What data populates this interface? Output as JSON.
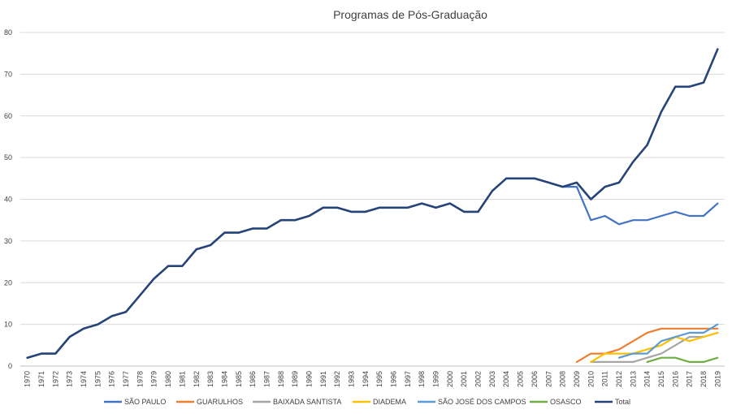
{
  "chart_data": {
    "type": "line",
    "title": "Programas de Pós-Graduação",
    "xlabel": "",
    "ylabel": "",
    "ylim": [
      0,
      80
    ],
    "yticks": [
      "0",
      "10",
      "20",
      "30",
      "40",
      "50",
      "60",
      "70",
      "80"
    ],
    "grid": "horizontal",
    "legend_position": "bottom",
    "x": [
      "1970",
      "1971",
      "1972",
      "1973",
      "1974",
      "1975",
      "1976",
      "1977",
      "1978",
      "1979",
      "1980",
      "1981",
      "1982",
      "1983",
      "1984",
      "1985",
      "1986",
      "1987",
      "1988",
      "1989",
      "1990",
      "1991",
      "1992",
      "1993",
      "1994",
      "1995",
      "1996",
      "1997",
      "1998",
      "1999",
      "2000",
      "2001",
      "2002",
      "2003",
      "2004",
      "2005",
      "2006",
      "2007",
      "2008",
      "2009",
      "2010",
      "2011",
      "2012",
      "2013",
      "2014",
      "2015",
      "2016",
      "2017",
      "2018",
      "2019"
    ],
    "series": [
      {
        "name": "SÃO PAULO",
        "color": "#4472C4",
        "values": [
          2,
          3,
          3,
          7,
          9,
          10,
          12,
          13,
          17,
          21,
          24,
          24,
          28,
          29,
          32,
          32,
          33,
          33,
          35,
          35,
          36,
          38,
          38,
          37,
          37,
          38,
          38,
          38,
          39,
          38,
          39,
          37,
          37,
          42,
          45,
          45,
          45,
          44,
          43,
          43,
          35,
          36,
          34,
          35,
          35,
          36,
          37,
          36,
          36,
          39
        ]
      },
      {
        "name": "GUARULHOS",
        "color": "#ED7D31",
        "values": [
          null,
          null,
          null,
          null,
          null,
          null,
          null,
          null,
          null,
          null,
          null,
          null,
          null,
          null,
          null,
          null,
          null,
          null,
          null,
          null,
          null,
          null,
          null,
          null,
          null,
          null,
          null,
          null,
          null,
          null,
          null,
          null,
          null,
          null,
          null,
          null,
          null,
          null,
          null,
          1,
          3,
          3,
          4,
          6,
          8,
          9,
          9,
          9,
          9,
          9
        ]
      },
      {
        "name": "BAIXADA SANTISTA",
        "color": "#A5A5A5",
        "values": [
          null,
          null,
          null,
          null,
          null,
          null,
          null,
          null,
          null,
          null,
          null,
          null,
          null,
          null,
          null,
          null,
          null,
          null,
          null,
          null,
          null,
          null,
          null,
          null,
          null,
          null,
          null,
          null,
          null,
          null,
          null,
          null,
          null,
          null,
          null,
          null,
          null,
          null,
          null,
          null,
          1,
          1,
          1,
          1,
          2,
          3,
          5,
          7,
          7,
          8
        ]
      },
      {
        "name": "DIADEMA",
        "color": "#FFC000",
        "values": [
          null,
          null,
          null,
          null,
          null,
          null,
          null,
          null,
          null,
          null,
          null,
          null,
          null,
          null,
          null,
          null,
          null,
          null,
          null,
          null,
          null,
          null,
          null,
          null,
          null,
          null,
          null,
          null,
          null,
          null,
          null,
          null,
          null,
          null,
          null,
          null,
          null,
          null,
          null,
          null,
          1,
          3,
          3,
          3,
          4,
          5,
          7,
          6,
          7,
          8
        ]
      },
      {
        "name": "SÃO JOSÉ DOS CAMPOS",
        "color": "#5B9BD5",
        "values": [
          null,
          null,
          null,
          null,
          null,
          null,
          null,
          null,
          null,
          null,
          null,
          null,
          null,
          null,
          null,
          null,
          null,
          null,
          null,
          null,
          null,
          null,
          null,
          null,
          null,
          null,
          null,
          null,
          null,
          null,
          null,
          null,
          null,
          null,
          null,
          null,
          null,
          null,
          null,
          null,
          null,
          null,
          2,
          3,
          3,
          6,
          7,
          8,
          8,
          10
        ]
      },
      {
        "name": "OSASCO",
        "color": "#70AD47",
        "values": [
          null,
          null,
          null,
          null,
          null,
          null,
          null,
          null,
          null,
          null,
          null,
          null,
          null,
          null,
          null,
          null,
          null,
          null,
          null,
          null,
          null,
          null,
          null,
          null,
          null,
          null,
          null,
          null,
          null,
          null,
          null,
          null,
          null,
          null,
          null,
          null,
          null,
          null,
          null,
          null,
          null,
          null,
          null,
          null,
          1,
          2,
          2,
          1,
          1,
          2
        ]
      },
      {
        "name": "Total",
        "color": "#264478",
        "values": [
          2,
          3,
          3,
          7,
          9,
          10,
          12,
          13,
          17,
          21,
          24,
          24,
          28,
          29,
          32,
          32,
          33,
          33,
          35,
          35,
          36,
          38,
          38,
          37,
          37,
          38,
          38,
          38,
          39,
          38,
          39,
          37,
          37,
          42,
          45,
          45,
          45,
          44,
          43,
          44,
          40,
          43,
          44,
          49,
          53,
          61,
          67,
          67,
          68,
          76
        ]
      }
    ]
  }
}
